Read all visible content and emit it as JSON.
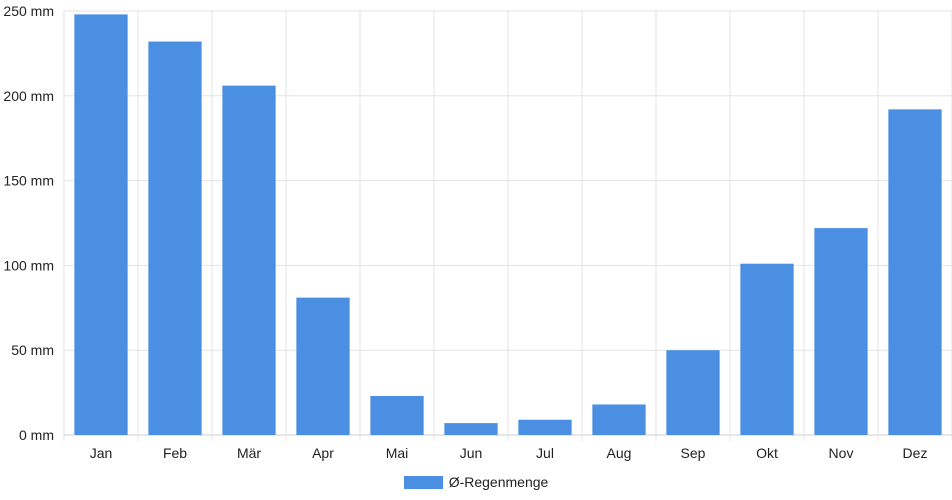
{
  "chart_data": {
    "type": "bar",
    "categories": [
      "Jan",
      "Feb",
      "Mär",
      "Apr",
      "Mai",
      "Jun",
      "Jul",
      "Aug",
      "Sep",
      "Okt",
      "Nov",
      "Dez"
    ],
    "series": [
      {
        "name": "Ø-Regenmenge",
        "values": [
          248,
          232,
          206,
          81,
          23,
          7,
          9,
          18,
          50,
          101,
          122,
          192
        ]
      }
    ],
    "y_ticks": [
      "0 mm",
      "50 mm",
      "100 mm",
      "150 mm",
      "200 mm",
      "250 mm"
    ],
    "ylim": [
      0,
      250
    ],
    "y_unit": "mm",
    "grid": true,
    "legend_position": "bottom-center",
    "colors": {
      "bar": "#4a8fe2",
      "grid": "#e3e3e3",
      "axis": "#cfcfcf"
    }
  }
}
